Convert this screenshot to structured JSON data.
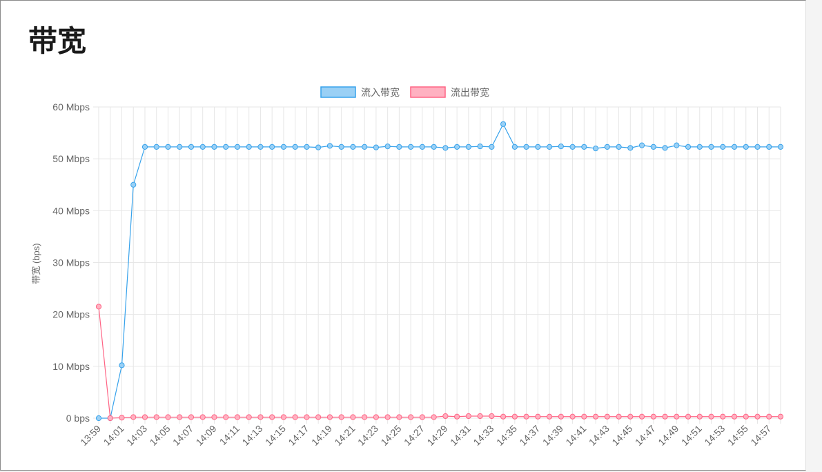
{
  "page": {
    "title": "带宽"
  },
  "chart_data": {
    "type": "line",
    "title": "",
    "xlabel": "",
    "ylabel": "带宽 (bps)",
    "ylim": [
      0,
      60
    ],
    "y_unit": "Mbps",
    "yticks": [
      "0 bps",
      "10 Mbps",
      "20 Mbps",
      "30 Mbps",
      "40 Mbps",
      "50 Mbps",
      "60 Mbps"
    ],
    "legend_position": "top",
    "grid": true,
    "x": [
      "13:59",
      "14:00",
      "14:01",
      "14:02",
      "14:03",
      "14:04",
      "14:05",
      "14:06",
      "14:07",
      "14:08",
      "14:09",
      "14:10",
      "14:11",
      "14:12",
      "14:13",
      "14:14",
      "14:15",
      "14:16",
      "14:17",
      "14:18",
      "14:19",
      "14:20",
      "14:21",
      "14:22",
      "14:23",
      "14:24",
      "14:25",
      "14:26",
      "14:27",
      "14:28",
      "14:29",
      "14:30",
      "14:31",
      "14:32",
      "14:33",
      "14:34",
      "14:35",
      "14:36",
      "14:37",
      "14:38",
      "14:39",
      "14:40",
      "14:41",
      "14:42",
      "14:43",
      "14:44",
      "14:45",
      "14:46",
      "14:47",
      "14:48",
      "14:49",
      "14:50",
      "14:51",
      "14:52",
      "14:53",
      "14:54",
      "14:55",
      "14:56",
      "14:57",
      "14:58"
    ],
    "xtick_labels": [
      "13:59",
      "14:01",
      "14:03",
      "14:05",
      "14:07",
      "14:09",
      "14:11",
      "14:13",
      "14:15",
      "14:17",
      "14:19",
      "14:21",
      "14:23",
      "14:25",
      "14:27",
      "14:29",
      "14:31",
      "14:33",
      "14:35",
      "14:37",
      "14:39",
      "14:41",
      "14:43",
      "14:45",
      "14:47",
      "14:49",
      "14:51",
      "14:53",
      "14:55",
      "14:57"
    ],
    "series": [
      {
        "name": "流入带宽",
        "line_color": "#36a2eb",
        "fill_color": "#9ad0f5",
        "values": [
          0,
          0,
          10.2,
          45,
          52.3,
          52.3,
          52.3,
          52.3,
          52.3,
          52.3,
          52.3,
          52.3,
          52.3,
          52.3,
          52.3,
          52.3,
          52.3,
          52.3,
          52.3,
          52.2,
          52.5,
          52.3,
          52.3,
          52.3,
          52.2,
          52.4,
          52.3,
          52.3,
          52.3,
          52.3,
          52.1,
          52.3,
          52.3,
          52.4,
          52.3,
          56.7,
          52.3,
          52.3,
          52.3,
          52.3,
          52.4,
          52.3,
          52.3,
          52.0,
          52.3,
          52.3,
          52.1,
          52.6,
          52.3,
          52.1,
          52.6,
          52.3,
          52.3,
          52.3,
          52.3,
          52.3,
          52.3,
          52.3,
          52.3,
          52.3
        ]
      },
      {
        "name": "流出带宽",
        "line_color": "#ff6384",
        "fill_color": "#ffb1c1",
        "values": [
          21.5,
          0,
          0.1,
          0.2,
          0.2,
          0.2,
          0.2,
          0.2,
          0.2,
          0.2,
          0.2,
          0.2,
          0.2,
          0.2,
          0.2,
          0.2,
          0.2,
          0.2,
          0.2,
          0.2,
          0.2,
          0.2,
          0.2,
          0.2,
          0.2,
          0.2,
          0.2,
          0.2,
          0.2,
          0.2,
          0.4,
          0.3,
          0.4,
          0.4,
          0.4,
          0.3,
          0.3,
          0.3,
          0.3,
          0.3,
          0.3,
          0.3,
          0.3,
          0.3,
          0.3,
          0.3,
          0.3,
          0.3,
          0.3,
          0.3,
          0.3,
          0.3,
          0.3,
          0.3,
          0.3,
          0.3,
          0.3,
          0.3,
          0.3,
          0.3
        ]
      }
    ]
  }
}
